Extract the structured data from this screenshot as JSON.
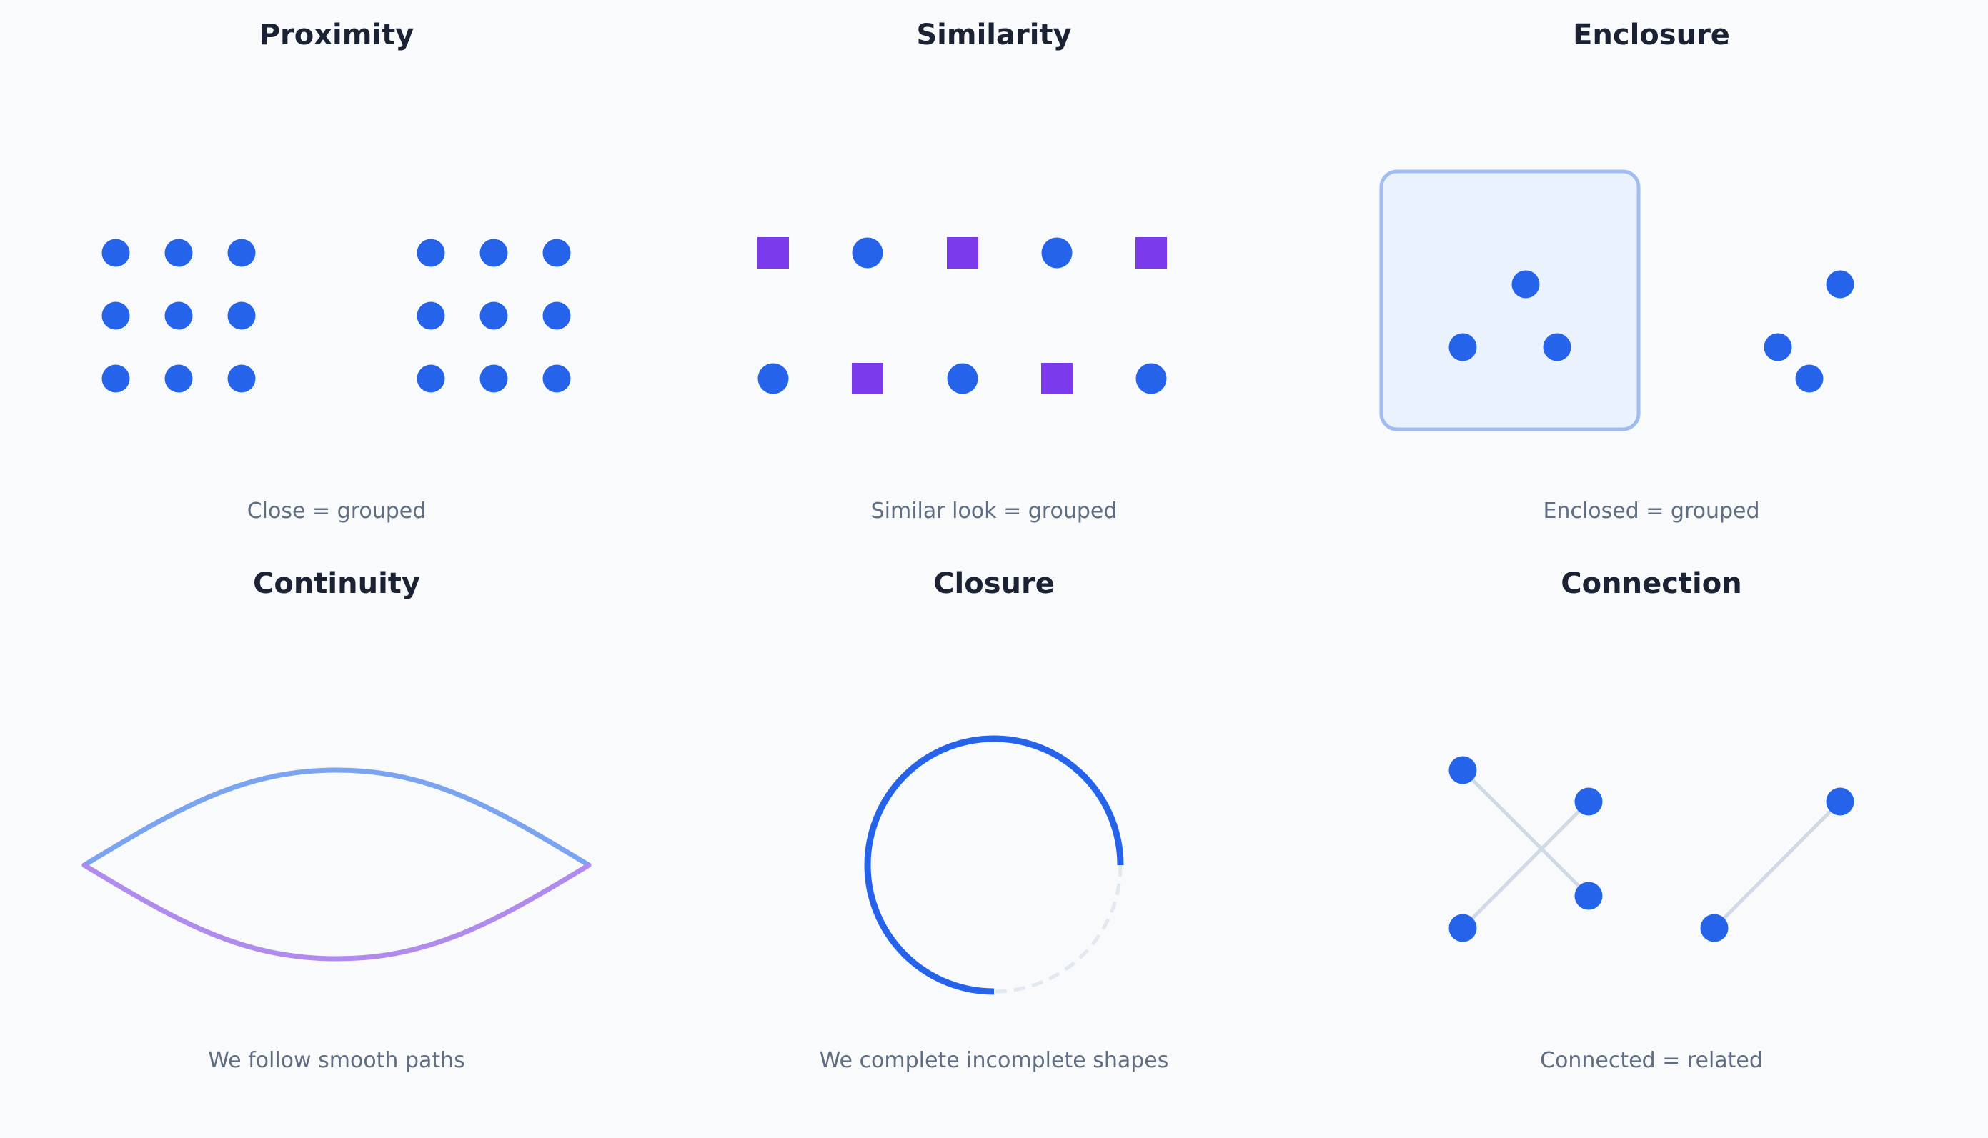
{
  "colors": {
    "background": "#f8fafc",
    "dot": "#2563eb",
    "square": "#7c3aed",
    "title": "#1a2233",
    "caption": "#5f6e82",
    "enclosure_fill": "#eaf2fd",
    "enclosure_stroke": "#a1bdf0",
    "upper_curve": "#7aa3f0",
    "lower_curve": "#b08aec",
    "closure_arc": "#2563eb",
    "closure_gap": "#e2e8f0",
    "connector": "#d0d9e6"
  },
  "panels": {
    "proximity": {
      "title": "Proximity",
      "caption": "Close = grouped"
    },
    "similarity": {
      "title": "Similarity",
      "caption": "Similar look = grouped",
      "rows": [
        [
          "square",
          "circle",
          "square",
          "circle",
          "square"
        ],
        [
          "circle",
          "square",
          "circle",
          "square",
          "circle"
        ]
      ]
    },
    "enclosure": {
      "title": "Enclosure",
      "caption": "Enclosed = grouped"
    },
    "continuity": {
      "title": "Continuity",
      "caption": "We follow smooth paths"
    },
    "closure": {
      "title": "Closure",
      "caption": "We complete incomplete shapes"
    },
    "connection": {
      "title": "Connection",
      "caption": "Connected = related"
    }
  }
}
